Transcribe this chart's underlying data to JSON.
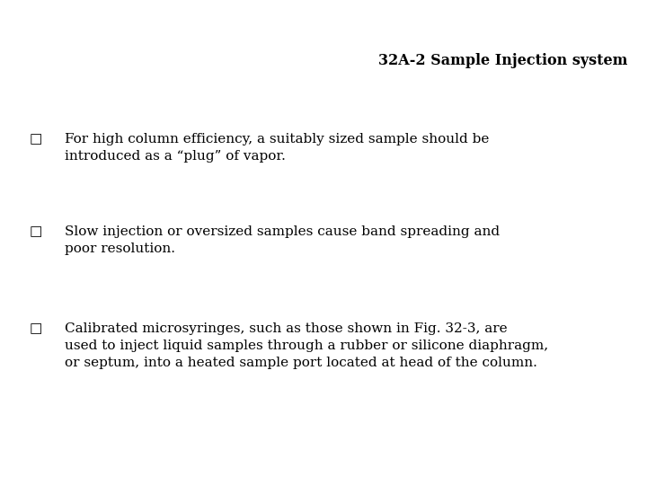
{
  "title": "32A-2 Sample Injection system",
  "title_fontsize": 11.5,
  "title_fontweight": "bold",
  "background_color": "#ffffff",
  "text_color": "#000000",
  "bullet_char": "□",
  "font_family": "DejaVu Serif",
  "bullets": [
    {
      "text": "For high column efficiency, a suitably sized sample should be\nintroduced as a “plug” of vapor.",
      "fontsize": 11
    },
    {
      "text": "Slow injection or oversized samples cause band spreading and\npoor resolution.",
      "fontsize": 11
    },
    {
      "text": "Calibrated microsyringes, such as those shown in Fig. 32-3, are\nused to inject liquid samples through a rubber or silicone diaphragm,\nor septum, into a heated sample port located at head of the column.",
      "fontsize": 11
    }
  ]
}
